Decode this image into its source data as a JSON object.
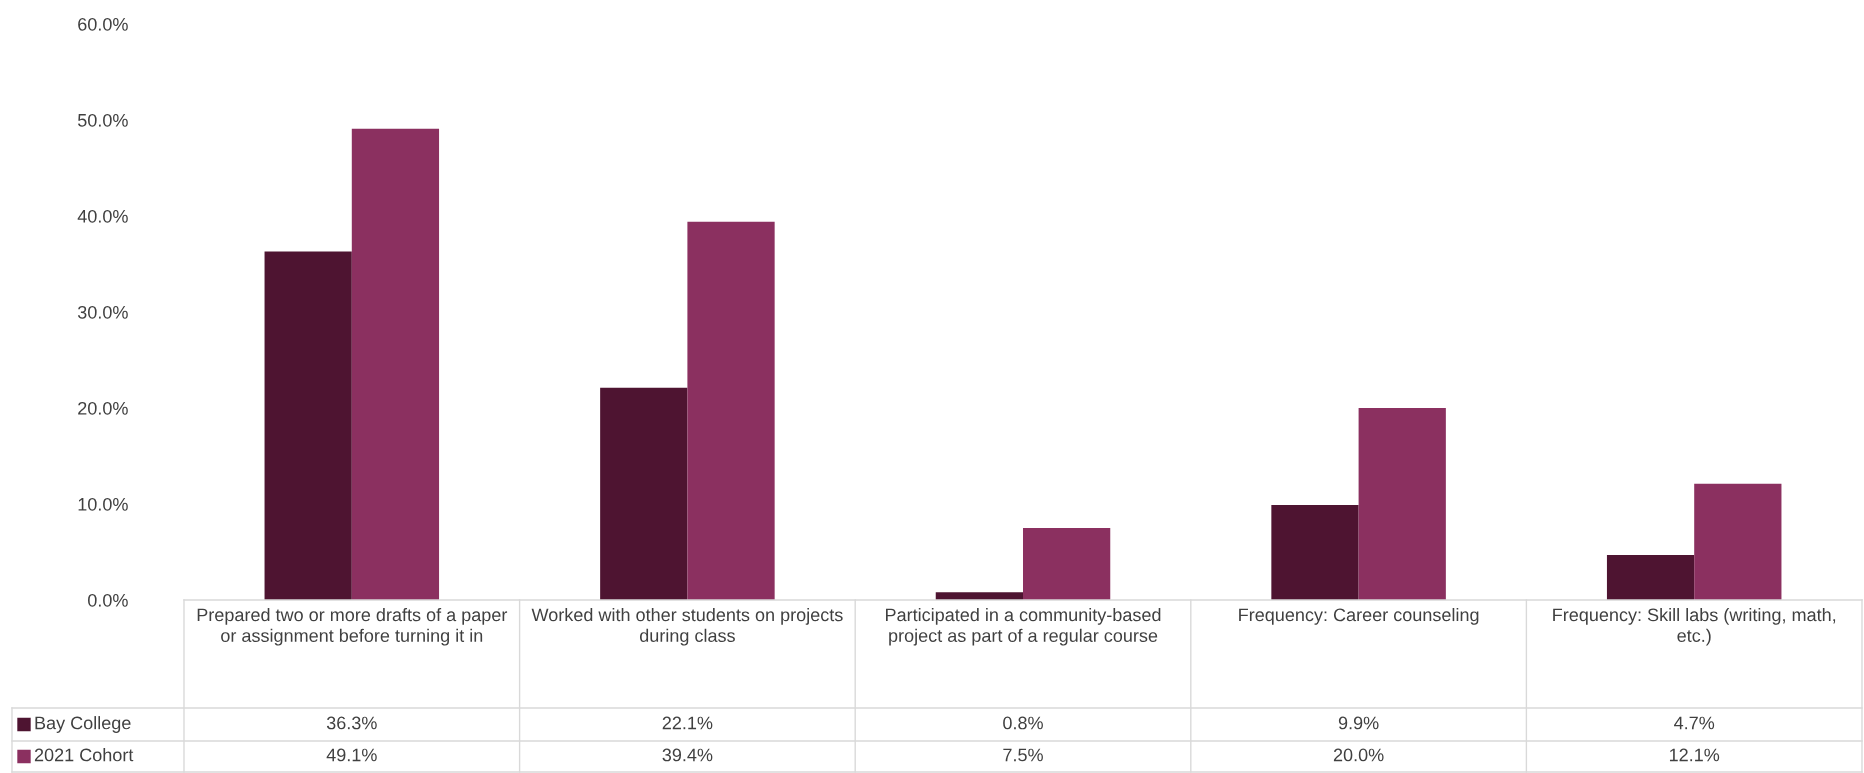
{
  "chart_data": {
    "type": "bar",
    "categories": [
      "Prepared two or more drafts of a paper or assignment before turning it in",
      "Worked with other students on projects during class",
      "Participated in a community-based project as part of a regular course",
      "Frequency: Career counseling",
      "Frequency: Skill labs (writing, math, etc.)"
    ],
    "series": [
      {
        "name": "Bay College",
        "color": "#4e1431",
        "values": [
          36.3,
          22.1,
          0.8,
          9.9,
          4.7
        ],
        "value_labels": [
          "36.3%",
          "22.1%",
          "0.8%",
          "9.9%",
          "4.7%"
        ]
      },
      {
        "name": "2021 Cohort",
        "color": "#8b3060",
        "values": [
          49.1,
          39.4,
          7.5,
          20.0,
          12.1
        ],
        "value_labels": [
          "49.1%",
          "39.4%",
          "7.5%",
          "20.0%",
          "12.1%"
        ]
      }
    ],
    "ylim": [
      0,
      60
    ],
    "yticks": [
      {
        "value": 0,
        "label": "0.0%"
      },
      {
        "value": 10,
        "label": "10.0%"
      },
      {
        "value": 20,
        "label": "20.0%"
      },
      {
        "value": 30,
        "label": "30.0%"
      },
      {
        "value": 40,
        "label": "40.0%"
      },
      {
        "value": 50,
        "label": "50.0%"
      },
      {
        "value": 60,
        "label": "60.0%"
      }
    ],
    "grid": false,
    "legend": "bottom"
  }
}
